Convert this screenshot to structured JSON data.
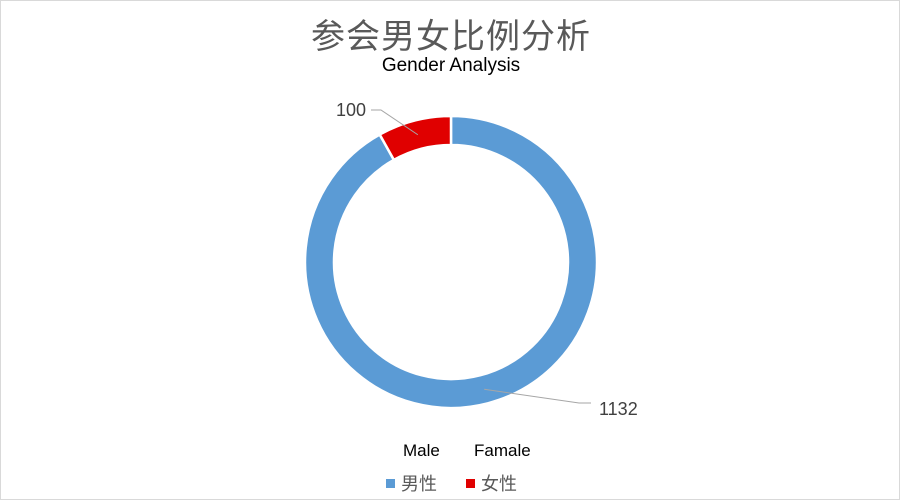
{
  "chart_data": {
    "type": "pie",
    "subtype": "doughnut",
    "title": "参会男女比例分析",
    "subtitle": "Gender Analysis",
    "series": [
      {
        "name": "男性",
        "english_label": "Male",
        "value": 1132,
        "color": "#5B9BD5"
      },
      {
        "name": "女性",
        "english_label": "Famale",
        "value": 100,
        "color": "#E00000"
      }
    ],
    "legend_position": "bottom"
  }
}
